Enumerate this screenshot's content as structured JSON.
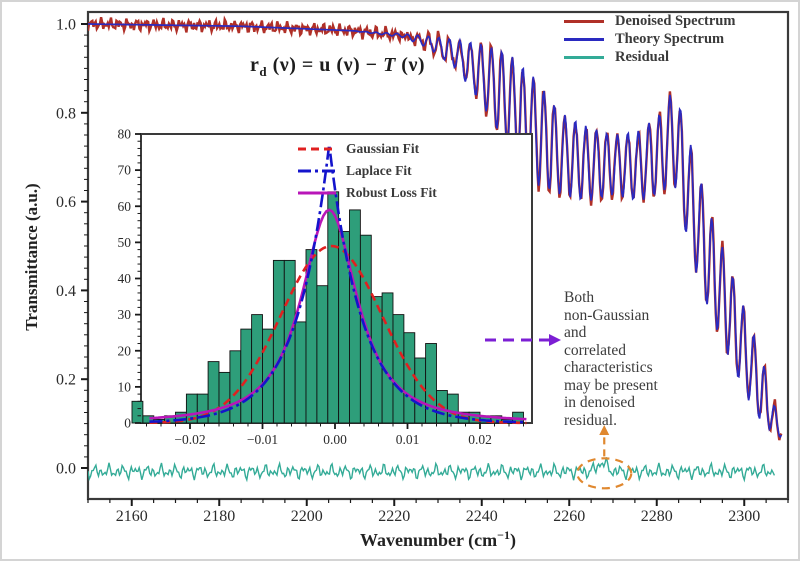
{
  "figure": {
    "background": "#ffffff",
    "spine_color": "#3a3a3a",
    "tick_color": "#1a1a1a",
    "tick_label_color": "#2b2b2b"
  },
  "chart_data": [
    {
      "type": "line",
      "title": "",
      "xlabel": "Wavenumber (cm",
      "xlabel_sup": "−1",
      "xlabel_close": ")",
      "ylabel": "Transmittance (a.u.)",
      "xlim": [
        2150,
        2310
      ],
      "ylim": [
        -0.07,
        1.027
      ],
      "x_major_ticks": [
        2160,
        2180,
        2200,
        2220,
        2240,
        2260,
        2280,
        2300
      ],
      "x_minor_step": 5,
      "y_major_ticks": [
        0.0,
        0.2,
        0.4,
        0.6,
        0.8,
        1.0
      ],
      "y_minor_step": 0.025,
      "grid": false,
      "legend": {
        "position": "top-right",
        "entries": [
          {
            "label": "Denoised Spectrum",
            "color": "#b03028"
          },
          {
            "label": "Theory Spectrum",
            "color": "#2a2ac0"
          },
          {
            "label": "Residual",
            "color": "#33ab97"
          }
        ]
      },
      "series": {
        "theory": {
          "name": "Theory Spectrum",
          "color": "#2a2ac0",
          "envelope_x": [
            2150,
            2185,
            2210,
            2222,
            2228,
            2234,
            2240,
            2246,
            2252,
            2258,
            2264,
            2270,
            2276,
            2281,
            2284,
            2288,
            2292,
            2296,
            2300,
            2304,
            2308
          ],
          "envelope_upper": [
            1.0,
            0.995,
            0.985,
            0.978,
            0.972,
            0.965,
            0.955,
            0.935,
            0.88,
            0.8,
            0.77,
            0.75,
            0.76,
            0.8,
            0.86,
            0.72,
            0.58,
            0.47,
            0.36,
            0.25,
            0.1
          ],
          "envelope_lower": [
            1.0,
            0.995,
            0.985,
            0.97,
            0.945,
            0.9,
            0.82,
            0.72,
            0.64,
            0.615,
            0.6,
            0.615,
            0.6,
            0.62,
            0.64,
            0.47,
            0.35,
            0.26,
            0.17,
            0.1,
            0.07
          ],
          "oscillation_period_cm": 2.4,
          "oscillation_peak_at": 2283
        },
        "denoised": {
          "name": "Denoised Spectrum",
          "color": "#b03028",
          "noise_amplitude": 0.011
        },
        "residual": {
          "name": "Residual",
          "color": "#33ab97",
          "baseline": -0.008,
          "noise_amplitude": 0.0125,
          "x_start": 2150,
          "x_end": 2307,
          "bump_center": 2267.5,
          "bump_height": 0.02
        }
      },
      "annotations": {
        "equation": {
          "r": "r",
          "sub": "d",
          "mid1": " (ν) = ",
          "u": "u",
          "mid2": " (ν) − ",
          "T": "T",
          "end": " (ν)"
        },
        "note": "Both\nnon-Gaussian\nand\ncorrelated\ncharacteristics\nmay be present\nin denoised\nresidual."
      },
      "markers": {
        "note_arrow_color": "#7c1fd4",
        "ellipse_color": "#e0882f",
        "ellipse_center_x": 2268,
        "ellipse_center_y": -0.012
      }
    },
    {
      "type": "histogram",
      "title": "",
      "xlabel": "",
      "ylabel": "",
      "xlim": [
        -0.0268,
        0.0272
      ],
      "ylim": [
        0,
        80
      ],
      "x_major_ticks": [
        -0.02,
        -0.01,
        0.0,
        0.01,
        0.02
      ],
      "x_minor_step": 0.002,
      "y_major_ticks": [
        0,
        10,
        20,
        30,
        40,
        50,
        60,
        70,
        80
      ],
      "y_minor_step": 2,
      "grid": false,
      "bar_color": "#2e9e7a",
      "bar_edge_color": "#111111",
      "bin_start": -0.028,
      "bin_width": 0.0015,
      "values": [
        6,
        2,
        1,
        2,
        3,
        8,
        8,
        17,
        14,
        20,
        26,
        30,
        26,
        45,
        45,
        28,
        48,
        38,
        64,
        53,
        59,
        52,
        35,
        36,
        30,
        25,
        18,
        22,
        9,
        8,
        3,
        3,
        2,
        2,
        1,
        3
      ],
      "fits": {
        "gaussian": {
          "amplitude": 49,
          "mu": -0.0005,
          "sigma": 0.007,
          "color": "#e02020",
          "style": "dashed"
        },
        "laplace": {
          "amplitude": 77,
          "mu": -0.0008,
          "b": 0.0046,
          "color": "#1414cc",
          "style": "dashdot"
        },
        "robust": {
          "amplitude": 59,
          "mu": -0.0008,
          "scale": 0.0052,
          "power": 1.2,
          "color": "#b816b8",
          "style": "solid"
        }
      },
      "legend": {
        "position": "top-right",
        "entries": [
          {
            "label": "Gaussian Fit",
            "color": "#e02020",
            "dash": "8 5",
            "width": 3
          },
          {
            "label": "Laplace Fit",
            "color": "#1414cc",
            "dash": "13 4 3 4",
            "width": 3
          },
          {
            "label": "Robust Loss Fit",
            "color": "#b816b8",
            "dash": "",
            "width": 3
          }
        ]
      }
    }
  ]
}
